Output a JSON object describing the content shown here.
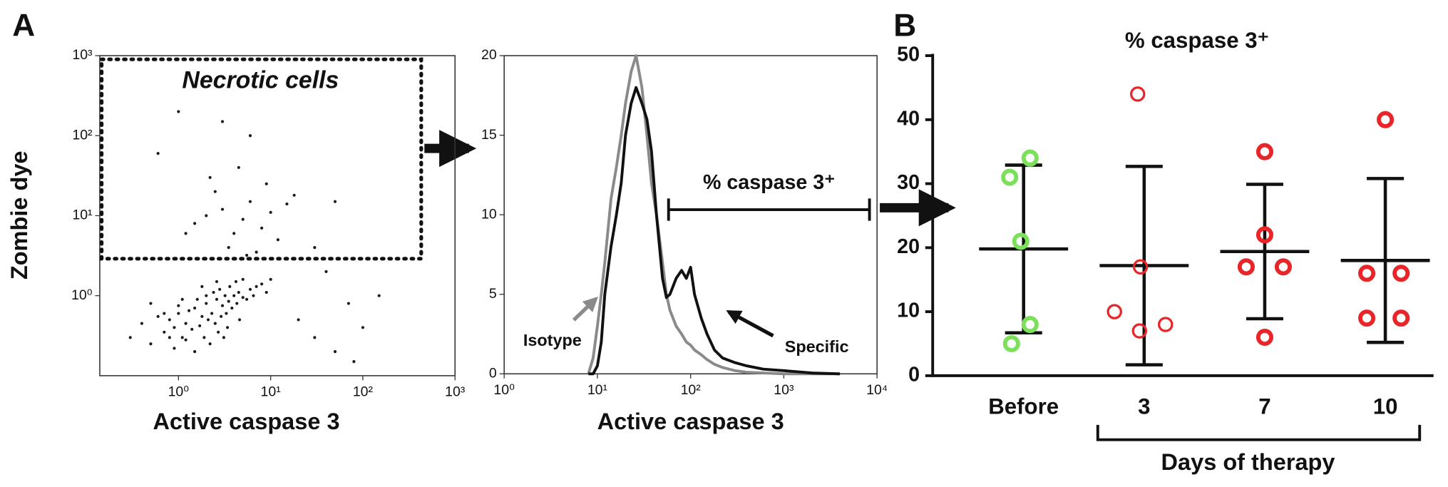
{
  "chart_data": [
    {
      "type": "scatter",
      "panel": "A",
      "xlabel": "Active caspase 3",
      "ylabel": "Zombie dye",
      "xscale": "log",
      "yscale": "log",
      "xlim": [
        0.14,
        1000
      ],
      "ylim": [
        0.1,
        1000
      ],
      "xticks": [
        {
          "value": 1,
          "label": "10⁰"
        },
        {
          "value": 10,
          "label": "10¹"
        },
        {
          "value": 100,
          "label": "10²"
        },
        {
          "value": 1000,
          "label": "10³"
        }
      ],
      "yticks": [
        {
          "value": 1,
          "label": "10⁰"
        },
        {
          "value": 10,
          "label": "10¹"
        },
        {
          "value": 100,
          "label": "10²"
        },
        {
          "value": 1000,
          "label": "10³"
        }
      ],
      "color": "#1a1a1a",
      "x": [
        0.8,
        1.0,
        1.2,
        1.5,
        1.8,
        2.0,
        2.3,
        2.6,
        3.0,
        3.5,
        4.0,
        4.5,
        5.0,
        6.0,
        7.0,
        0.7,
        0.9,
        1.1,
        1.4,
        1.7,
        2.1,
        2.5,
        2.9,
        3.3,
        3.8,
        4.3,
        5.5,
        6.5,
        8.0,
        0.6,
        1.0,
        1.3,
        1.6,
        2.0,
        2.4,
        2.8,
        3.2,
        3.6,
        4.2,
        5.0,
        0.5,
        0.8,
        1.2,
        1.9,
        2.7,
        3.4,
        4.6,
        0.4,
        0.9,
        1.5,
        2.2,
        3.1,
        0.3,
        0.7,
        1.8,
        2.6,
        9.0,
        10,
        0.5,
        1.1,
        1.5,
        2,
        3,
        4,
        5,
        6,
        8,
        10,
        12,
        15,
        2.5,
        3.5,
        7,
        9,
        1.2,
        18,
        4.5,
        6,
        3,
        2.2,
        5.5,
        50,
        0.6,
        1,
        30,
        20,
        30,
        50,
        70,
        100,
        150,
        40,
        80
      ],
      "y": [
        0.5,
        0.6,
        0.45,
        0.7,
        0.55,
        0.8,
        0.6,
        0.9,
        0.75,
        0.85,
        1.0,
        1.1,
        0.95,
        1.2,
        1.3,
        0.35,
        0.4,
        0.3,
        0.38,
        0.42,
        0.5,
        0.45,
        0.55,
        0.6,
        0.7,
        0.8,
        0.9,
        1.0,
        1.4,
        0.55,
        0.75,
        0.65,
        0.9,
        1.0,
        1.1,
        1.2,
        1.0,
        1.3,
        1.5,
        1.6,
        0.25,
        0.3,
        0.28,
        0.3,
        0.35,
        0.4,
        0.5,
        0.45,
        0.22,
        0.2,
        0.25,
        0.3,
        0.3,
        0.6,
        1.3,
        1.5,
        1.1,
        1.6,
        0.8,
        0.9,
        8,
        10,
        12,
        6,
        9,
        15,
        7,
        11,
        5,
        14,
        20,
        4,
        3.5,
        25,
        6,
        18,
        40,
        100,
        150,
        30,
        3.2,
        15,
        60,
        200,
        4,
        0.5,
        0.3,
        0.2,
        0.8,
        0.4,
        1,
        2,
        0.15
      ],
      "gate": {
        "label": "Necrotic cells",
        "x": [
          0.14,
          430
        ],
        "y": [
          2.9,
          900
        ]
      }
    },
    {
      "type": "line",
      "xlabel": "Active caspase 3",
      "xscale": "log",
      "xlim": [
        1,
        10000
      ],
      "ylim": [
        0,
        20
      ],
      "xticks": [
        {
          "value": 1,
          "label": "10⁰"
        },
        {
          "value": 10,
          "label": "10¹"
        },
        {
          "value": 100,
          "label": "10²"
        },
        {
          "value": 1000,
          "label": "10³"
        },
        {
          "value": 10000,
          "label": "10⁴"
        }
      ],
      "yticks": [
        0,
        5,
        10,
        15,
        20
      ],
      "x": [
        8,
        9,
        10,
        11,
        12,
        14,
        16,
        18,
        20,
        23,
        26,
        30,
        34,
        38,
        43,
        50,
        55,
        60,
        70,
        80,
        90,
        100,
        110,
        130,
        150,
        180,
        220,
        300,
        400,
        600,
        1000,
        2000,
        4000
      ],
      "series": [
        {
          "name": "Isotype",
          "color": "#8a8a8a",
          "values": [
            0,
            1,
            3,
            5,
            7,
            11,
            13,
            15,
            17,
            19,
            20,
            18,
            15,
            12,
            10,
            7,
            5,
            4,
            3,
            2.5,
            2,
            1.8,
            1.5,
            1.2,
            0.9,
            0.6,
            0.4,
            0.2,
            0.1,
            0.05,
            0,
            0,
            0
          ]
        },
        {
          "name": "Specific",
          "color": "#111111",
          "values": [
            0,
            0,
            0.5,
            2,
            5,
            8,
            10,
            12,
            15,
            17,
            18,
            17,
            16,
            14,
            10,
            6,
            4.8,
            5,
            6,
            6.5,
            6,
            6.7,
            5,
            3.5,
            2.5,
            1.5,
            1,
            0.7,
            0.5,
            0.3,
            0.2,
            0.05,
            0
          ]
        }
      ],
      "gate": {
        "label": "% caspase 3⁺",
        "x": [
          58,
          8300
        ]
      }
    },
    {
      "type": "dotplot",
      "panel": "B",
      "title": "% caspase 3⁺",
      "xlabel": "Days of therapy",
      "categories": [
        "Before",
        "3",
        "7",
        "10"
      ],
      "colors": [
        "#7be05a",
        "#e8262a",
        "#e8262a",
        "#e8262a"
      ],
      "values": [
        [
          34,
          31,
          21,
          8,
          5
        ],
        [
          44,
          17,
          10,
          7,
          8
        ],
        [
          35,
          22,
          17,
          17,
          6
        ],
        [
          40,
          16,
          16,
          9,
          9
        ]
      ],
      "means": [
        19.8,
        17.2,
        19.4,
        18
      ],
      "sds": [
        13.1,
        15.5,
        10.5,
        12.8
      ],
      "ylim": [
        0,
        50
      ],
      "yticks": [
        0,
        10,
        20,
        30,
        40,
        50
      ]
    }
  ]
}
